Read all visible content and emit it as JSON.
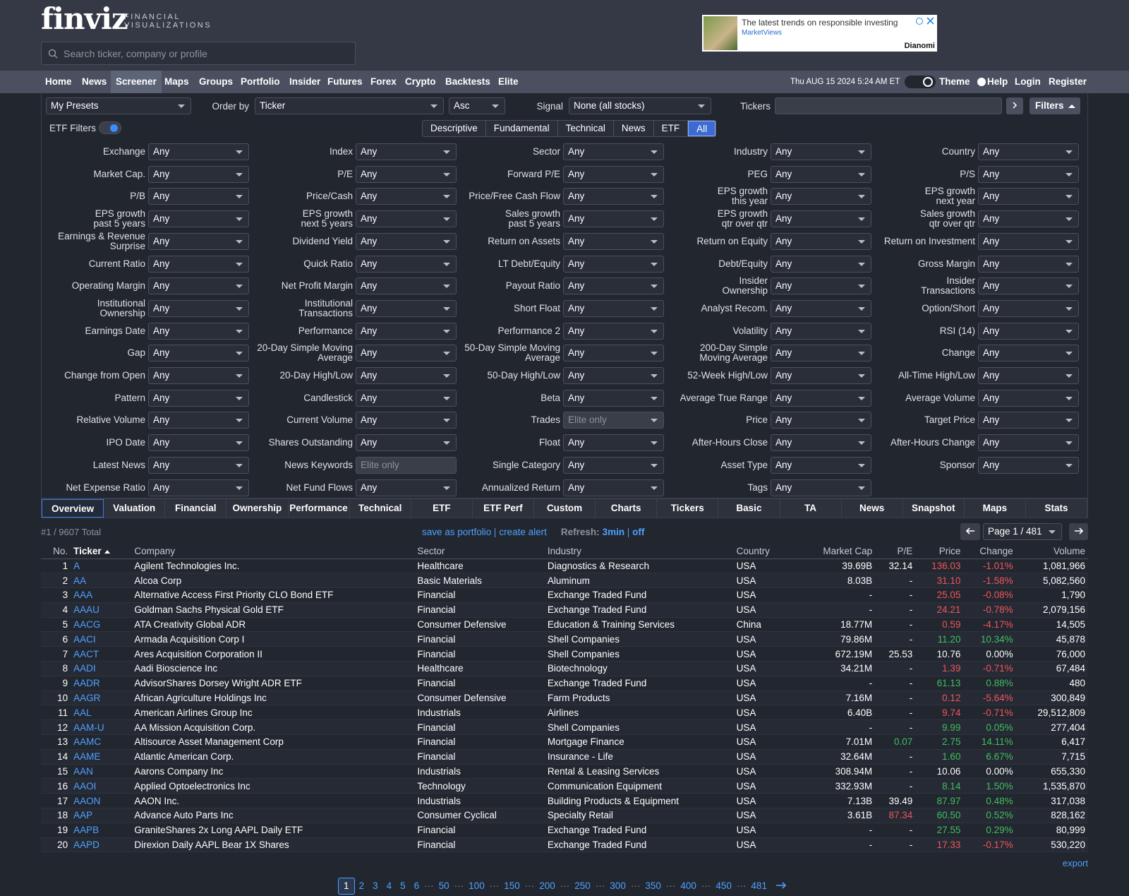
{
  "header": {
    "logo": "finviz",
    "logo_sub": [
      "FINANCIAL",
      "VISUALIZATIONS"
    ],
    "search_placeholder": "Search ticker, company or profile",
    "ad": {
      "text": "The latest trends on responsible investing",
      "source": "MarketViews",
      "brand": "Dianomi"
    }
  },
  "nav": {
    "items": [
      "Home",
      "News",
      "Screener",
      "Maps",
      "Groups",
      "Portfolio",
      "Insider",
      "Futures",
      "Forex",
      "Crypto",
      "Backtests",
      "Elite"
    ],
    "active": 2,
    "datetime": "Thu AUG 15 2024 5:24 AM ET",
    "theme": "Theme",
    "help": "Help",
    "login": "Login",
    "register": "Register"
  },
  "controls": {
    "presets": "My Presets",
    "order_by_label": "Order by",
    "order_by": "Ticker",
    "order": "Asc",
    "signal_label": "Signal",
    "signal": "None (all stocks)",
    "tickers_label": "Tickers",
    "filters_button": "Filters",
    "etf_filters": "ETF Filters",
    "filter_tabs": [
      "Descriptive",
      "Fundamental",
      "Technical",
      "News",
      "ETF",
      "All"
    ],
    "active_tab": 5
  },
  "filters": [
    {
      "label": "Exchange",
      "value": "Any"
    },
    {
      "label": "Index",
      "value": "Any"
    },
    {
      "label": "Sector",
      "value": "Any"
    },
    {
      "label": "Industry",
      "value": "Any"
    },
    {
      "label": "Country",
      "value": "Any"
    },
    {
      "label": "Market Cap.",
      "value": "Any"
    },
    {
      "label": "P/E",
      "value": "Any"
    },
    {
      "label": "Forward P/E",
      "value": "Any"
    },
    {
      "label": "PEG",
      "value": "Any"
    },
    {
      "label": "P/S",
      "value": "Any"
    },
    {
      "label": "P/B",
      "value": "Any"
    },
    {
      "label": "Price/Cash",
      "value": "Any"
    },
    {
      "label": "Price/Free Cash Flow",
      "value": "Any"
    },
    {
      "label": "EPS growth\nthis year",
      "value": "Any"
    },
    {
      "label": "EPS growth\nnext year",
      "value": "Any"
    },
    {
      "label": "EPS growth\npast 5 years",
      "value": "Any"
    },
    {
      "label": "EPS growth\nnext 5 years",
      "value": "Any"
    },
    {
      "label": "Sales growth\npast 5 years",
      "value": "Any"
    },
    {
      "label": "EPS growth\nqtr over qtr",
      "value": "Any"
    },
    {
      "label": "Sales growth\nqtr over qtr",
      "value": "Any"
    },
    {
      "label": "Earnings & Revenue\nSurprise",
      "value": "Any"
    },
    {
      "label": "Dividend Yield",
      "value": "Any"
    },
    {
      "label": "Return on Assets",
      "value": "Any"
    },
    {
      "label": "Return on Equity",
      "value": "Any"
    },
    {
      "label": "Return on Investment",
      "value": "Any"
    },
    {
      "label": "Current Ratio",
      "value": "Any"
    },
    {
      "label": "Quick Ratio",
      "value": "Any"
    },
    {
      "label": "LT Debt/Equity",
      "value": "Any"
    },
    {
      "label": "Debt/Equity",
      "value": "Any"
    },
    {
      "label": "Gross Margin",
      "value": "Any"
    },
    {
      "label": "Operating Margin",
      "value": "Any"
    },
    {
      "label": "Net Profit Margin",
      "value": "Any"
    },
    {
      "label": "Payout Ratio",
      "value": "Any"
    },
    {
      "label": "Insider\nOwnership",
      "value": "Any"
    },
    {
      "label": "Insider\nTransactions",
      "value": "Any"
    },
    {
      "label": "Institutional\nOwnership",
      "value": "Any"
    },
    {
      "label": "Institutional\nTransactions",
      "value": "Any"
    },
    {
      "label": "Short Float",
      "value": "Any"
    },
    {
      "label": "Analyst Recom.",
      "value": "Any"
    },
    {
      "label": "Option/Short",
      "value": "Any"
    },
    {
      "label": "Earnings Date",
      "value": "Any"
    },
    {
      "label": "Performance",
      "value": "Any"
    },
    {
      "label": "Performance 2",
      "value": "Any"
    },
    {
      "label": "Volatility",
      "value": "Any"
    },
    {
      "label": "RSI (14)",
      "value": "Any"
    },
    {
      "label": "Gap",
      "value": "Any"
    },
    {
      "label": "20-Day Simple Moving\nAverage",
      "value": "Any"
    },
    {
      "label": "50-Day Simple Moving\nAverage",
      "value": "Any"
    },
    {
      "label": "200-Day Simple\nMoving Average",
      "value": "Any"
    },
    {
      "label": "Change",
      "value": "Any"
    },
    {
      "label": "Change from Open",
      "value": "Any"
    },
    {
      "label": "20-Day High/Low",
      "value": "Any"
    },
    {
      "label": "50-Day High/Low",
      "value": "Any"
    },
    {
      "label": "52-Week High/Low",
      "value": "Any"
    },
    {
      "label": "All-Time High/Low",
      "value": "Any"
    },
    {
      "label": "Pattern",
      "value": "Any"
    },
    {
      "label": "Candlestick",
      "value": "Any"
    },
    {
      "label": "Beta",
      "value": "Any"
    },
    {
      "label": "Average True Range",
      "value": "Any"
    },
    {
      "label": "Average Volume",
      "value": "Any"
    },
    {
      "label": "Relative Volume",
      "value": "Any"
    },
    {
      "label": "Current Volume",
      "value": "Any"
    },
    {
      "label": "Trades",
      "value": "Elite only",
      "disabled": true
    },
    {
      "label": "Price",
      "value": "Any"
    },
    {
      "label": "Target Price",
      "value": "Any"
    },
    {
      "label": "IPO Date",
      "value": "Any"
    },
    {
      "label": "Shares Outstanding",
      "value": "Any"
    },
    {
      "label": "Float",
      "value": "Any"
    },
    {
      "label": "After-Hours Close",
      "value": "Any"
    },
    {
      "label": "After-Hours Change",
      "value": "Any"
    },
    {
      "label": "Latest News",
      "value": "Any"
    },
    {
      "label": "News Keywords",
      "value": "Elite only",
      "input": true
    },
    {
      "label": "Single Category",
      "value": "Any"
    },
    {
      "label": "Asset Type",
      "value": "Any"
    },
    {
      "label": "Sponsor",
      "value": "Any"
    },
    {
      "label": "Net Expense Ratio",
      "value": "Any"
    },
    {
      "label": "Net Fund Flows",
      "value": "Any"
    },
    {
      "label": "Annualized Return",
      "value": "Any"
    },
    {
      "label": "Tags",
      "value": "Any"
    }
  ],
  "view_tabs": [
    "Overview",
    "Valuation",
    "Financial",
    "Ownership",
    "Performance",
    "Technical",
    "ETF",
    "ETF Perf",
    "Custom",
    "Charts",
    "Tickers",
    "Basic",
    "TA",
    "News",
    "Snapshot",
    "Maps",
    "Stats"
  ],
  "active_view": 0,
  "results": {
    "total": "#1 / 9607 Total",
    "save_portfolio": "save as portfolio",
    "create_alert": "create alert",
    "refresh_label": "Refresh:",
    "refresh_value": "3min",
    "refresh_off": "off",
    "page": "Page 1 / 481"
  },
  "table": {
    "columns": [
      "No.",
      "Ticker",
      "Company",
      "Sector",
      "Industry",
      "Country",
      "Market Cap",
      "P/E",
      "Price",
      "Change",
      "Volume"
    ],
    "sorted_column": 1,
    "rows": [
      {
        "cells": [
          "1",
          "A",
          "Agilent Technologies Inc.",
          "Healthcare",
          "Diagnostics & Research",
          "USA",
          "39.69B",
          "32.14",
          "136.03",
          "-1.01%",
          "1,081,966"
        ]
      },
      {
        "cells": [
          "2",
          "AA",
          "Alcoa Corp",
          "Basic Materials",
          "Aluminum",
          "USA",
          "8.03B",
          "-",
          "31.10",
          "-1.58%",
          "5,082,560"
        ]
      },
      {
        "cells": [
          "3",
          "AAA",
          "Alternative Access First Priority CLO Bond ETF",
          "Financial",
          "Exchange Traded Fund",
          "USA",
          "-",
          "-",
          "25.05",
          "-0.08%",
          "1,790"
        ]
      },
      {
        "cells": [
          "4",
          "AAAU",
          "Goldman Sachs Physical Gold ETF",
          "Financial",
          "Exchange Traded Fund",
          "USA",
          "-",
          "-",
          "24.21",
          "-0.78%",
          "2,079,156"
        ]
      },
      {
        "cells": [
          "5",
          "AACG",
          "ATA Creativity Global ADR",
          "Consumer Defensive",
          "Education & Training Services",
          "China",
          "18.77M",
          "-",
          "0.59",
          "-4.17%",
          "14,505"
        ]
      },
      {
        "cells": [
          "6",
          "AACI",
          "Armada Acquisition Corp I",
          "Financial",
          "Shell Companies",
          "USA",
          "79.86M",
          "-",
          "11.20",
          "10.34%",
          "45,878"
        ]
      },
      {
        "cells": [
          "7",
          "AACT",
          "Ares Acquisition Corporation II",
          "Financial",
          "Shell Companies",
          "USA",
          "672.19M",
          "25.53",
          "10.76",
          "0.00%",
          "76,000"
        ]
      },
      {
        "cells": [
          "8",
          "AADI",
          "Aadi Bioscience Inc",
          "Healthcare",
          "Biotechnology",
          "USA",
          "34.21M",
          "-",
          "1.39",
          "-0.71%",
          "67,484"
        ]
      },
      {
        "cells": [
          "9",
          "AADR",
          "AdvisorShares Dorsey Wright ADR ETF",
          "Financial",
          "Exchange Traded Fund",
          "USA",
          "-",
          "-",
          "61.13",
          "0.88%",
          "480"
        ]
      },
      {
        "cells": [
          "10",
          "AAGR",
          "African Agriculture Holdings Inc",
          "Consumer Defensive",
          "Farm Products",
          "USA",
          "7.16M",
          "-",
          "0.12",
          "-5.64%",
          "300,849"
        ]
      },
      {
        "cells": [
          "11",
          "AAL",
          "American Airlines Group Inc",
          "Industrials",
          "Airlines",
          "USA",
          "6.40B",
          "-",
          "9.74",
          "-0.71%",
          "29,512,809"
        ]
      },
      {
        "cells": [
          "12",
          "AAM-U",
          "AA Mission Acquisition Corp.",
          "Financial",
          "Shell Companies",
          "USA",
          "-",
          "-",
          "9.99",
          "0.05%",
          "277,404"
        ]
      },
      {
        "cells": [
          "13",
          "AAMC",
          "Altisource Asset Management Corp",
          "Financial",
          "Mortgage Finance",
          "USA",
          "7.01M",
          "0.07",
          "2.75",
          "14.11%",
          "6,417"
        ],
        "pe_color": "green"
      },
      {
        "cells": [
          "14",
          "AAME",
          "Atlantic American Corp.",
          "Financial",
          "Insurance - Life",
          "USA",
          "32.64M",
          "-",
          "1.60",
          "6.67%",
          "7,715"
        ]
      },
      {
        "cells": [
          "15",
          "AAN",
          "Aarons Company Inc",
          "Industrials",
          "Rental & Leasing Services",
          "USA",
          "308.94M",
          "-",
          "10.06",
          "0.00%",
          "655,330"
        ]
      },
      {
        "cells": [
          "16",
          "AAOI",
          "Applied Optoelectronics Inc",
          "Technology",
          "Communication Equipment",
          "USA",
          "332.93M",
          "-",
          "8.14",
          "1.50%",
          "1,535,870"
        ]
      },
      {
        "cells": [
          "17",
          "AAON",
          "AAON Inc.",
          "Industrials",
          "Building Products & Equipment",
          "USA",
          "7.13B",
          "39.49",
          "87.97",
          "0.48%",
          "317,038"
        ]
      },
      {
        "cells": [
          "18",
          "AAP",
          "Advance Auto Parts Inc",
          "Consumer Cyclical",
          "Specialty Retail",
          "USA",
          "3.61B",
          "87.34",
          "60.50",
          "0.52%",
          "828,162"
        ],
        "pe_color": "red"
      },
      {
        "cells": [
          "19",
          "AAPB",
          "GraniteShares 2x Long AAPL Daily ETF",
          "Financial",
          "Exchange Traded Fund",
          "USA",
          "-",
          "-",
          "27.55",
          "0.29%",
          "80,999"
        ]
      },
      {
        "cells": [
          "20",
          "AAPD",
          "Direxion Daily AAPL Bear 1X Shares",
          "Financial",
          "Exchange Traded Fund",
          "USA",
          "-",
          "-",
          "17.33",
          "-0.17%",
          "530,220"
        ]
      }
    ]
  },
  "export": "export",
  "pagination": {
    "pages": [
      "1",
      "2",
      "3",
      "4",
      "5",
      "6",
      "···",
      "50",
      "···",
      "100",
      "···",
      "150",
      "···",
      "200",
      "···",
      "250",
      "···",
      "300",
      "···",
      "350",
      "···",
      "400",
      "···",
      "450",
      "···",
      "481"
    ],
    "current": 0
  }
}
